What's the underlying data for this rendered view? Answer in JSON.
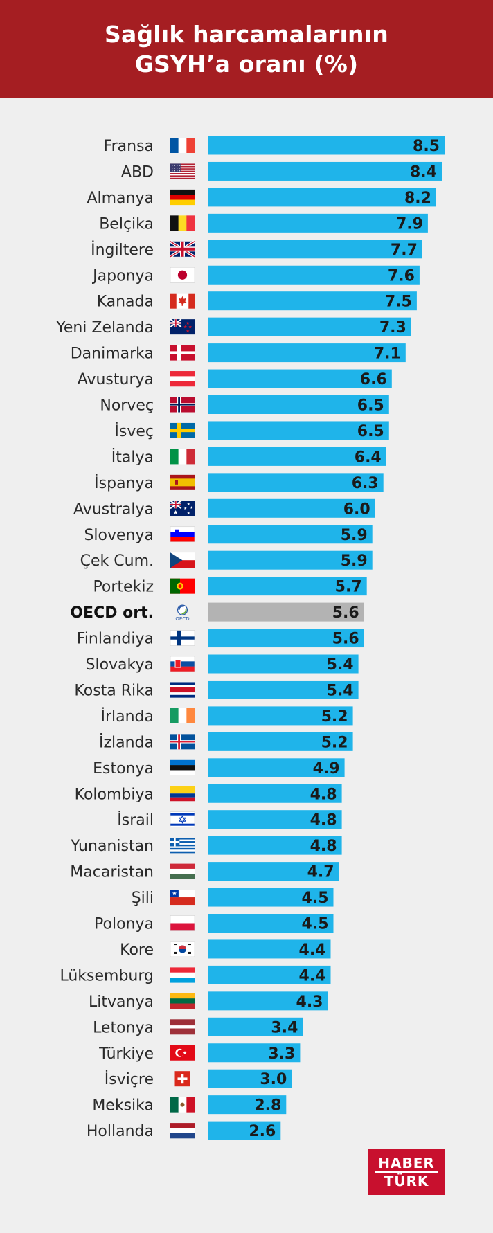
{
  "header": {
    "title_line1": "Sağlık harcamalarının",
    "title_line2": "GSYH’a oranı (%)"
  },
  "logo": {
    "line1": "HABER",
    "line2": "TÜRK"
  },
  "colors": {
    "header_bg": "#a51e22",
    "bar": "#1fb4ea",
    "bar_highlight": "#b3b3b3",
    "background": "#efefef"
  },
  "chart_data": {
    "type": "bar",
    "orientation": "horizontal",
    "title": "Sağlık harcamalarının GSYH’a oranı (%)",
    "xlim": [
      0,
      8.5
    ],
    "categories": [
      "Fransa",
      "ABD",
      "Almanya",
      "Belçika",
      "İngiltere",
      "Japonya",
      "Kanada",
      "Yeni Zelanda",
      "Danimarka",
      "Avusturya",
      "Norveç",
      "İsveç",
      "İtalya",
      "İspanya",
      "Avustralya",
      "Slovenya",
      "Çek Cum.",
      "Portekiz",
      "OECD ort.",
      "Finlandiya",
      "Slovakya",
      "Kosta Rika",
      "İrlanda",
      "İzlanda",
      "Estonya",
      "Kolombiya",
      "İsrail",
      "Yunanistan",
      "Macaristan",
      "Şili",
      "Polonya",
      "Kore",
      "Lüksemburg",
      "Litvanya",
      "Letonya",
      "Türkiye",
      "İsviçre",
      "Meksika",
      "Hollanda"
    ],
    "values": [
      8.5,
      8.4,
      8.2,
      7.9,
      7.7,
      7.6,
      7.5,
      7.3,
      7.1,
      6.6,
      6.5,
      6.5,
      6.4,
      6.3,
      6.0,
      5.9,
      5.9,
      5.7,
      5.6,
      5.6,
      5.4,
      5.4,
      5.2,
      5.2,
      4.9,
      4.8,
      4.8,
      4.8,
      4.7,
      4.5,
      4.5,
      4.4,
      4.4,
      4.3,
      3.4,
      3.3,
      3.0,
      2.8,
      2.6
    ],
    "value_labels": [
      "8.5",
      "8.4",
      "8.2",
      "7.9",
      "7.7",
      "7.6",
      "7.5",
      "7.3",
      "7.1",
      "6.6",
      "6.5",
      "6.5",
      "6.4",
      "6.3",
      "6.0",
      "5.9",
      "5.9",
      "5.7",
      "5.6",
      "5.6",
      "5.4",
      "5.4",
      "5.2",
      "5.2",
      "4.9",
      "4.8",
      "4.8",
      "4.8",
      "4.7",
      "4.5",
      "4.5",
      "4.4",
      "4.4",
      "4.3",
      "3.4",
      "3.3",
      "3.0",
      "2.8",
      "2.6"
    ],
    "flags": [
      "fr",
      "us",
      "de",
      "be",
      "gb",
      "jp",
      "ca",
      "nz",
      "dk",
      "at",
      "no",
      "se",
      "it",
      "es",
      "au",
      "si",
      "cz",
      "pt",
      "oecd",
      "fi",
      "sk",
      "cr",
      "ie",
      "is",
      "ee",
      "co",
      "il",
      "gr",
      "hu",
      "cl",
      "pl",
      "kr",
      "lu",
      "lt",
      "lv",
      "tr",
      "ch",
      "mx",
      "nl"
    ],
    "highlight": "OECD ort.",
    "oecd_icon_text": "OECD"
  }
}
